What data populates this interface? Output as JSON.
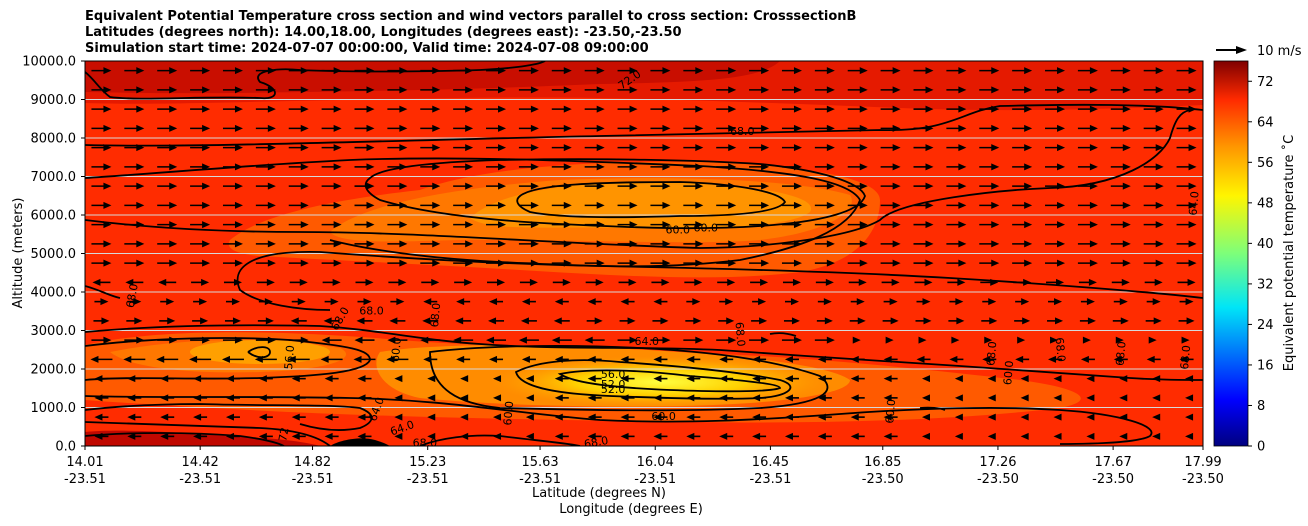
{
  "chart_data": {
    "type": "contour",
    "title": [
      "Equivalent Potential Temperature cross section and wind vectors parallel to cross section: CrosssectionB",
      "Latitudes (degrees north): 14.00,18.00, Longitudes (degrees east): -23.50,-23.50",
      "Simulation start time: 2024-07-07 00:00:00, Valid time: 2024-07-08 09:00:00"
    ],
    "ylabel": "Altitude (meters)",
    "xlabel_lat": "Latitude (degrees N)",
    "xlabel_lon": "Longitude (degrees E)",
    "ylim": [
      0,
      10000
    ],
    "y_ticks": [
      "0.0",
      "1000.0",
      "2000.0",
      "3000.0",
      "4000.0",
      "5000.0",
      "6000.0",
      "7000.0",
      "8000.0",
      "9000.0",
      "10000.0"
    ],
    "x_ticks": [
      {
        "lat": "14.01",
        "lon": "-23.51"
      },
      {
        "lat": "14.42",
        "lon": "-23.51"
      },
      {
        "lat": "14.82",
        "lon": "-23.51"
      },
      {
        "lat": "15.23",
        "lon": "-23.51"
      },
      {
        "lat": "15.63",
        "lon": "-23.51"
      },
      {
        "lat": "16.04",
        "lon": "-23.51"
      },
      {
        "lat": "16.45",
        "lon": "-23.51"
      },
      {
        "lat": "16.85",
        "lon": "-23.50"
      },
      {
        "lat": "17.26",
        "lon": "-23.50"
      },
      {
        "lat": "17.67",
        "lon": "-23.50"
      },
      {
        "lat": "17.99",
        "lon": "-23.50"
      }
    ],
    "colorbar": {
      "label": "Equivalent potential temperature ˚C",
      "range": [
        0,
        76
      ],
      "ticks": [
        "0",
        "8",
        "16",
        "24",
        "32",
        "40",
        "48",
        "56",
        "64",
        "72"
      ]
    },
    "wind_key": "10 m/s",
    "contour_labels": [
      {
        "text": "72.0",
        "lat": 15.95,
        "alt": 9500,
        "rot": -35
      },
      {
        "text": "68.0",
        "lat": 16.35,
        "alt": 8150,
        "rot": 0
      },
      {
        "text": "60.0",
        "lat": 16.12,
        "alt": 5600,
        "rot": 0
      },
      {
        "text": "60.0",
        "lat": 16.22,
        "alt": 5650,
        "rot": 0
      },
      {
        "text": "64.0",
        "lat": 17.96,
        "alt": 6300,
        "rot": -85
      },
      {
        "text": "68.0",
        "lat": 14.18,
        "alt": 3900,
        "rot": -80
      },
      {
        "text": "68.0",
        "lat": 14.92,
        "alt": 3300,
        "rot": -60
      },
      {
        "text": "68.0",
        "lat": 15.03,
        "alt": 3500,
        "rot": 0
      },
      {
        "text": "68.0",
        "lat": 15.26,
        "alt": 3400,
        "rot": -85
      },
      {
        "text": "68.0",
        "lat": 16.34,
        "alt": 2900,
        "rot": 85
      },
      {
        "text": "64.0",
        "lat": 16.01,
        "alt": 2700,
        "rot": 0
      },
      {
        "text": "56.0",
        "lat": 14.74,
        "alt": 2300,
        "rot": -85
      },
      {
        "text": "60.0",
        "lat": 15.12,
        "alt": 2500,
        "rot": -85
      },
      {
        "text": "56.0",
        "lat": 15.89,
        "alt": 1850,
        "rot": 0
      },
      {
        "text": "52.0",
        "lat": 15.89,
        "alt": 1580,
        "rot": 0
      },
      {
        "text": "52.0",
        "lat": 15.89,
        "alt": 1450,
        "rot": 0
      },
      {
        "text": "60.0",
        "lat": 16.07,
        "alt": 750,
        "rot": 0
      },
      {
        "text": "60.0",
        "lat": 15.52,
        "alt": 850,
        "rot": -85
      },
      {
        "text": "60.0",
        "lat": 16.88,
        "alt": 900,
        "rot": -85
      },
      {
        "text": "64.0",
        "lat": 15.05,
        "alt": 950,
        "rot": -70
      },
      {
        "text": "64.0",
        "lat": 15.14,
        "alt": 450,
        "rot": -20
      },
      {
        "text": "68.0",
        "lat": 15.22,
        "alt": 60,
        "rot": 0
      },
      {
        "text": "68.0",
        "lat": 15.83,
        "alt": 80,
        "rot": -10
      },
      {
        "text": "72",
        "lat": 14.72,
        "alt": 300,
        "rot": -80
      },
      {
        "text": "60.0",
        "lat": 17.3,
        "alt": 1900,
        "rot": -85
      },
      {
        "text": "68.0",
        "lat": 17.24,
        "alt": 2400,
        "rot": -85
      },
      {
        "text": "68.0",
        "lat": 17.48,
        "alt": 2500,
        "rot": 85
      },
      {
        "text": "68.0",
        "lat": 17.7,
        "alt": 2400,
        "rot": -85
      },
      {
        "text": "68.0",
        "lat": 17.93,
        "alt": 2300,
        "rot": -85
      }
    ]
  }
}
